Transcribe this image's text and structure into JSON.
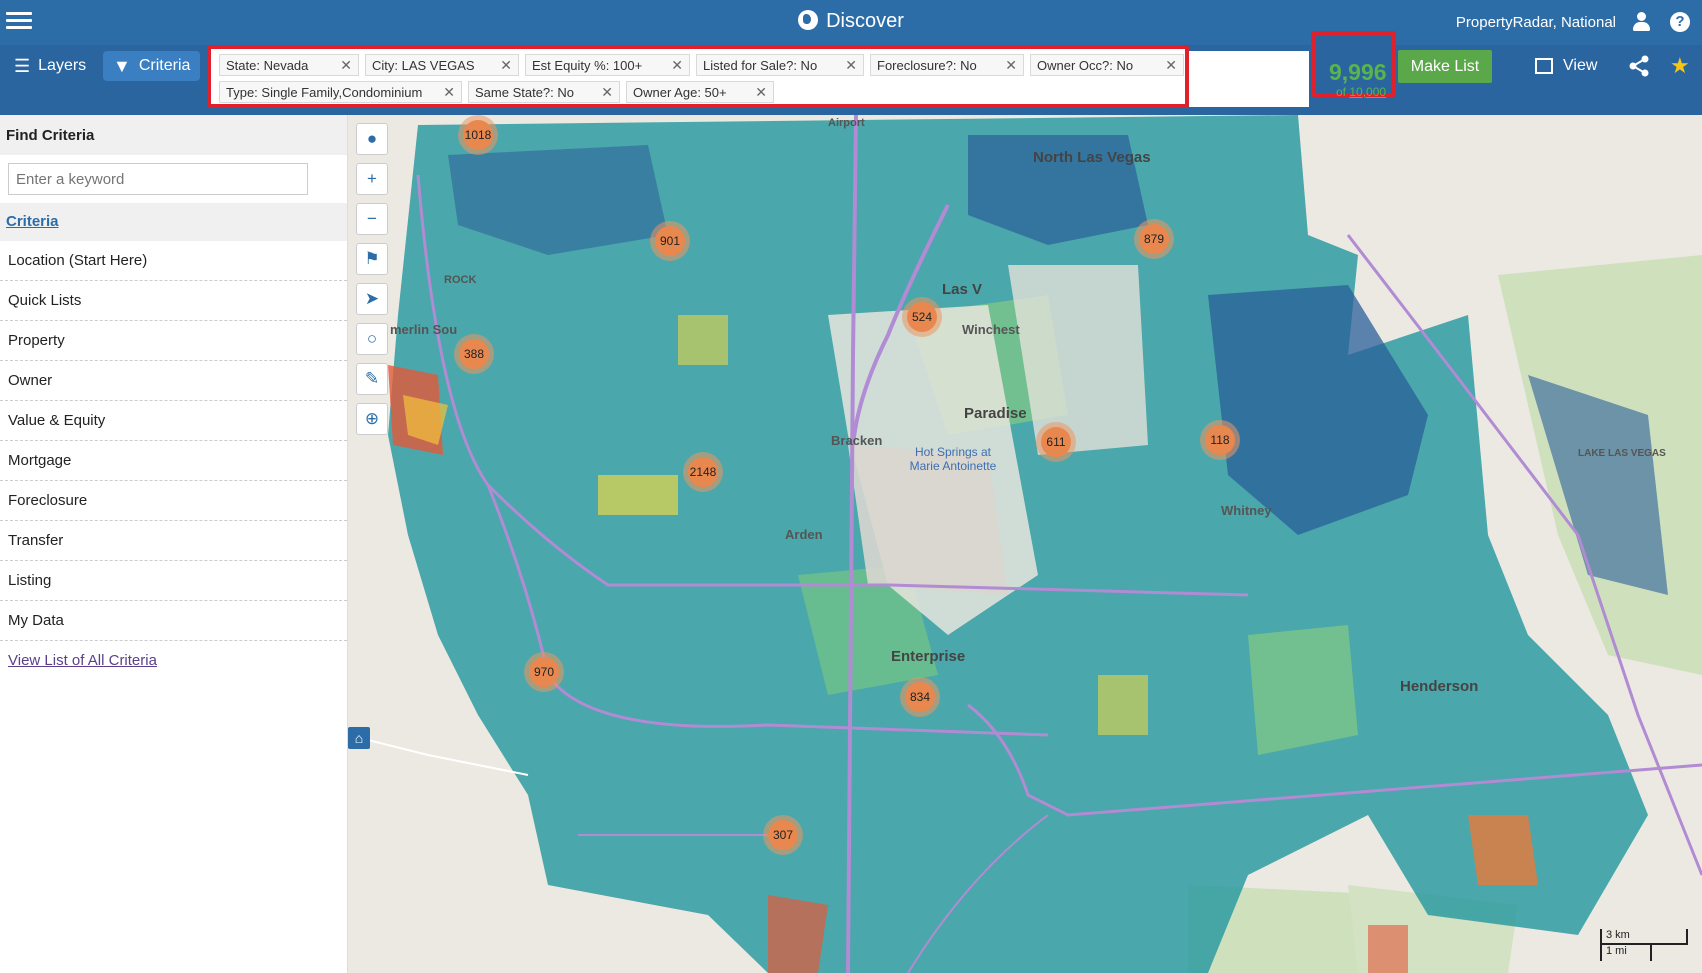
{
  "header": {
    "title": "Discover",
    "account": "PropertyRadar, National"
  },
  "toolbar": {
    "layers_label": "Layers",
    "criteria_label": "Criteria",
    "filters_row1": [
      "State: Nevada",
      "City: LAS VEGAS",
      "Est Equity %: 100+",
      "Listed for Sale?: No",
      "Foreclosure?: No",
      "Owner Occ?: No"
    ],
    "filters_row2": [
      "Type: Single Family,Condominium",
      "Same State?: No",
      "Owner Age: 50+"
    ],
    "result_count": "9,996",
    "result_of": "of",
    "result_limit": "10,000",
    "make_list_label": "Make List",
    "view_label": "View",
    "accent_color": "#2c6da8",
    "highlight_color": "#e0202a",
    "count_color": "#58b44b"
  },
  "sidebar": {
    "header": "Find Criteria",
    "search_placeholder": "Enter a keyword",
    "criteria_link": "Criteria",
    "items": [
      "Location (Start Here)",
      "Quick Lists",
      "Property",
      "Owner",
      "Value & Equity",
      "Mortgage",
      "Foreclosure",
      "Transfer",
      "Listing",
      "My Data"
    ],
    "all_criteria_link": "View List of All Criteria"
  },
  "map": {
    "clusters": [
      "1018",
      "901",
      "879",
      "524",
      "388",
      "611",
      "118",
      "2148",
      "970",
      "834",
      "307"
    ],
    "places": {
      "north_las_vegas": "North Las Vegas",
      "las_vegas": "Las V",
      "paradise": "Paradise",
      "bracken": "Bracken",
      "hot_springs": "Hot Springs at Marie Antoinette",
      "enterprise": "Enterprise",
      "arden": "Arden",
      "whitney": "Whitney",
      "henderson": "Henderson",
      "lake": "LAKE LAS VEGAS",
      "summerlin": "merlin Sou",
      "winchester": "Winchest",
      "rock": "ROCK",
      "airport": "Airport"
    },
    "scale": {
      "km": "3 km",
      "mi": "1 mi"
    }
  }
}
